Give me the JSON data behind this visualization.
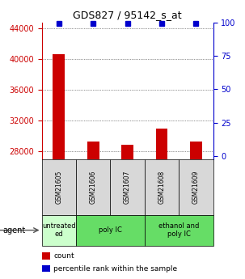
{
  "title": "GDS827 / 95142_s_at",
  "samples": [
    "GSM21605",
    "GSM21606",
    "GSM21607",
    "GSM21608",
    "GSM21609"
  ],
  "counts": [
    40700,
    29300,
    28900,
    31000,
    29300
  ],
  "percentiles": [
    99,
    99,
    99,
    99,
    99
  ],
  "ylim_left": [
    27000,
    44800
  ],
  "ylim_right": [
    -2,
    100
  ],
  "yticks_left": [
    28000,
    32000,
    36000,
    40000,
    44000
  ],
  "yticks_right": [
    0,
    25,
    50,
    75,
    100
  ],
  "bar_color": "#cc0000",
  "dot_color": "#0000cc",
  "bar_width": 0.35,
  "agent_groups": [
    {
      "label": "untreated\ned",
      "color": "#ccffcc",
      "start": 0,
      "end": 1
    },
    {
      "label": "poly IC",
      "color": "#66dd66",
      "start": 1,
      "end": 3
    },
    {
      "label": "ethanol and\npoly IC",
      "color": "#66dd66",
      "start": 3,
      "end": 5
    }
  ],
  "left_axis_color": "#cc0000",
  "right_axis_color": "#0000cc",
  "sample_box_color": "#d8d8d8",
  "plot_bg": "#ffffff",
  "grid_color": "#333333",
  "legend_count_color": "#cc0000",
  "legend_pct_color": "#0000cc",
  "tick_labelsize": 7,
  "title_fontsize": 9
}
